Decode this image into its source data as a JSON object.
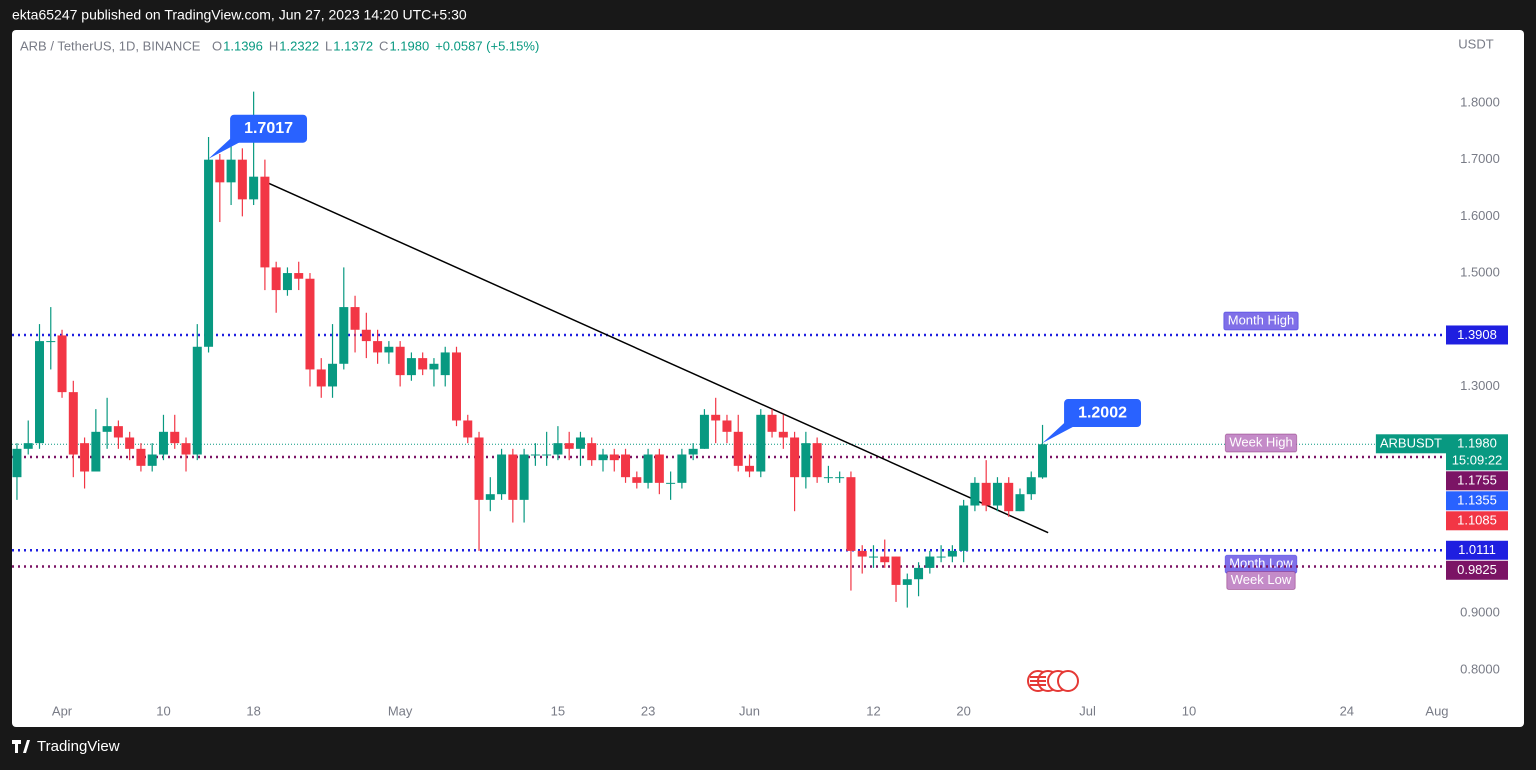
{
  "chart_data": {
    "type": "candlestick",
    "header": "ekta65247 published on TradingView.com, Jun 27, 2023 14:20 UTC+5:30",
    "symbol": "ARB / TetherUS, 1D, BINANCE",
    "legend_ohlc": [
      {
        "key": "O",
        "value": 1.1396
      },
      {
        "key": "H",
        "value": 1.2322
      },
      {
        "key": "L",
        "value": 1.1372
      },
      {
        "key": "C",
        "value": 1.198,
        "label": "1.1980"
      }
    ],
    "change": "+0.0587 (+5.15%)",
    "currency": "USDT",
    "brand": "TradingView",
    "up_color": "#089981",
    "down_color": "#f23645",
    "x": [
      -4,
      -3,
      -2,
      -1,
      0,
      1,
      2,
      3,
      4,
      5,
      6,
      7,
      8,
      9,
      10,
      11,
      12,
      13,
      14,
      15,
      16,
      17,
      18,
      19,
      20,
      21,
      22,
      23,
      24,
      25,
      26,
      27,
      28,
      29,
      30,
      31,
      32,
      33,
      34,
      35,
      36,
      37,
      38,
      39,
      40,
      41,
      42,
      43,
      44,
      45,
      46,
      47,
      48,
      49,
      50,
      51,
      52,
      53,
      54,
      55,
      56,
      57,
      58,
      59,
      60,
      61,
      62,
      63,
      64,
      65,
      66,
      67,
      68,
      69,
      70,
      71,
      72,
      73,
      74,
      75,
      76,
      77,
      78,
      79,
      80,
      81,
      82,
      83,
      84,
      85,
      86,
      87
    ],
    "open": [
      1.14,
      1.19,
      1.2,
      1.38,
      1.39,
      1.29,
      1.2,
      1.15,
      1.22,
      1.23,
      1.21,
      1.19,
      1.16,
      1.18,
      1.22,
      1.2,
      1.18,
      1.37,
      1.7,
      1.66,
      1.7,
      1.63,
      1.67,
      1.51,
      1.47,
      1.5,
      1.49,
      1.33,
      1.3,
      1.34,
      1.44,
      1.4,
      1.38,
      1.36,
      1.37,
      1.32,
      1.35,
      1.33,
      1.32,
      1.36,
      1.24,
      1.21,
      1.1,
      1.11,
      1.18,
      1.1,
      1.18,
      1.18,
      1.18,
      1.2,
      1.19,
      1.2,
      1.17,
      1.18,
      1.18,
      1.14,
      1.13,
      1.18,
      1.13,
      1.13,
      1.18,
      1.19,
      1.25,
      1.24,
      1.22,
      1.16,
      1.15,
      1.25,
      1.22,
      1.21,
      1.14,
      1.2,
      1.14,
      1.14,
      1.14,
      1.01,
      1.0,
      1.0,
      1.0,
      0.95,
      0.96,
      0.98,
      1.0,
      1.0,
      1.01,
      1.09,
      1.13,
      1.09,
      1.13,
      1.08,
      1.11,
      1.1396
    ],
    "high": [
      1.2,
      1.24,
      1.41,
      1.44,
      1.4,
      1.31,
      1.21,
      1.26,
      1.28,
      1.24,
      1.22,
      1.2,
      1.2,
      1.25,
      1.25,
      1.21,
      1.41,
      1.74,
      1.71,
      1.73,
      1.72,
      1.82,
      1.7,
      1.52,
      1.51,
      1.52,
      1.5,
      1.35,
      1.41,
      1.51,
      1.46,
      1.43,
      1.4,
      1.38,
      1.38,
      1.36,
      1.36,
      1.35,
      1.37,
      1.37,
      1.25,
      1.22,
      1.14,
      1.19,
      1.19,
      1.19,
      1.2,
      1.22,
      1.23,
      1.22,
      1.22,
      1.21,
      1.19,
      1.19,
      1.19,
      1.15,
      1.19,
      1.19,
      1.15,
      1.19,
      1.2,
      1.26,
      1.28,
      1.25,
      1.25,
      1.18,
      1.26,
      1.26,
      1.25,
      1.22,
      1.22,
      1.21,
      1.16,
      1.15,
      1.15,
      1.02,
      1.02,
      1.03,
      1.0,
      0.97,
      0.99,
      1.01,
      1.02,
      1.02,
      1.1,
      1.14,
      1.17,
      1.14,
      1.14,
      1.12,
      1.15,
      1.2322
    ],
    "low": [
      1.1,
      1.18,
      1.19,
      1.33,
      1.28,
      1.14,
      1.12,
      1.15,
      1.19,
      1.19,
      1.17,
      1.15,
      1.15,
      1.17,
      1.19,
      1.15,
      1.17,
      1.36,
      1.59,
      1.62,
      1.6,
      1.62,
      1.47,
      1.43,
      1.46,
      1.47,
      1.3,
      1.28,
      1.28,
      1.33,
      1.36,
      1.35,
      1.34,
      1.34,
      1.3,
      1.31,
      1.32,
      1.3,
      1.3,
      1.23,
      1.2,
      1.01,
      1.08,
      1.1,
      1.06,
      1.06,
      1.16,
      1.16,
      1.17,
      1.17,
      1.16,
      1.16,
      1.15,
      1.15,
      1.13,
      1.12,
      1.12,
      1.11,
      1.1,
      1.12,
      1.17,
      1.19,
      1.2,
      1.2,
      1.15,
      1.14,
      1.14,
      1.21,
      1.19,
      1.08,
      1.12,
      1.13,
      1.13,
      1.13,
      0.94,
      0.97,
      0.98,
      0.98,
      0.92,
      0.91,
      0.93,
      0.97,
      0.99,
      0.99,
      0.99,
      1.08,
      1.08,
      1.08,
      1.07,
      1.08,
      1.1,
      1.1372
    ],
    "close": [
      1.19,
      1.2,
      1.38,
      1.38,
      1.29,
      1.18,
      1.15,
      1.22,
      1.23,
      1.21,
      1.19,
      1.16,
      1.18,
      1.22,
      1.2,
      1.18,
      1.37,
      1.7,
      1.66,
      1.7,
      1.63,
      1.67,
      1.51,
      1.47,
      1.5,
      1.49,
      1.33,
      1.3,
      1.34,
      1.44,
      1.4,
      1.38,
      1.36,
      1.37,
      1.32,
      1.35,
      1.33,
      1.34,
      1.36,
      1.24,
      1.21,
      1.1,
      1.11,
      1.18,
      1.1,
      1.18,
      1.18,
      1.18,
      1.2,
      1.19,
      1.21,
      1.17,
      1.18,
      1.17,
      1.14,
      1.13,
      1.18,
      1.13,
      1.13,
      1.18,
      1.19,
      1.25,
      1.24,
      1.22,
      1.16,
      1.15,
      1.25,
      1.22,
      1.21,
      1.14,
      1.2,
      1.14,
      1.14,
      1.14,
      1.01,
      1.0,
      1.0,
      0.99,
      0.95,
      0.96,
      0.98,
      1.0,
      1.0,
      1.01,
      1.09,
      1.13,
      1.09,
      1.13,
      1.08,
      1.11,
      1.14,
      1.198
    ],
    "xlim": [
      -4.44,
      122.8
    ],
    "ylim": [
      0.747,
      1.9287
    ],
    "xticks": [
      {
        "value": 0,
        "label": "Apr"
      },
      {
        "value": 9,
        "label": "10"
      },
      {
        "value": 17,
        "label": "18"
      },
      {
        "value": 30,
        "label": "May"
      },
      {
        "value": 44,
        "label": "15"
      },
      {
        "value": 52,
        "label": "23"
      },
      {
        "value": 61,
        "label": "Jun"
      },
      {
        "value": 72,
        "label": "12"
      },
      {
        "value": 80,
        "label": "20"
      },
      {
        "value": 91,
        "label": "Jul"
      },
      {
        "value": 100,
        "label": "10"
      },
      {
        "value": 114,
        "label": "24"
      },
      {
        "value": 122,
        "label": "Aug"
      }
    ],
    "yticks": [
      {
        "value": 1.8,
        "label": "1.8000"
      },
      {
        "value": 1.7,
        "label": "1.7000"
      },
      {
        "value": 1.6,
        "label": "1.6000"
      },
      {
        "value": 1.5,
        "label": "1.5000"
      },
      {
        "value": 1.3,
        "label": "1.3000"
      },
      {
        "value": 0.9,
        "label": "0.9000"
      },
      {
        "value": 0.8,
        "label": "0.8000"
      }
    ],
    "trendline": {
      "x": [
        17.7,
        87.5
      ],
      "y": [
        1.664,
        1.042
      ],
      "color": "#000000"
    },
    "callouts": [
      {
        "x": 13,
        "value": 1.7017
      },
      {
        "x": 87,
        "value": 1.2002
      }
    ],
    "levels": [
      {
        "name": "Month High",
        "value": 1.3908,
        "color": "#1f1fe0",
        "label_color": "#7f6fe8",
        "side": "above"
      },
      {
        "name": "Week High",
        "value": 1.1755,
        "color": "#7b1465",
        "label_color": "#c48bc8",
        "side": "above"
      },
      {
        "name": "Month Low",
        "value": 1.0111,
        "color": "#1f1fe0",
        "label_color": "#7f6fe8",
        "side": "below"
      },
      {
        "name": "Week Low",
        "value": 0.9825,
        "color": "#7b1465",
        "label_color": "#c48bc8",
        "side": "below"
      }
    ],
    "price_tags": [
      {
        "name": "ARBUSDT",
        "value": 1.198,
        "label": "1.1980",
        "countdown": "15:09:22",
        "color": "#089981"
      },
      {
        "value": 1.1355,
        "color": "#2962ff"
      },
      {
        "value": 1.1085,
        "color": "#f23645"
      }
    ]
  }
}
